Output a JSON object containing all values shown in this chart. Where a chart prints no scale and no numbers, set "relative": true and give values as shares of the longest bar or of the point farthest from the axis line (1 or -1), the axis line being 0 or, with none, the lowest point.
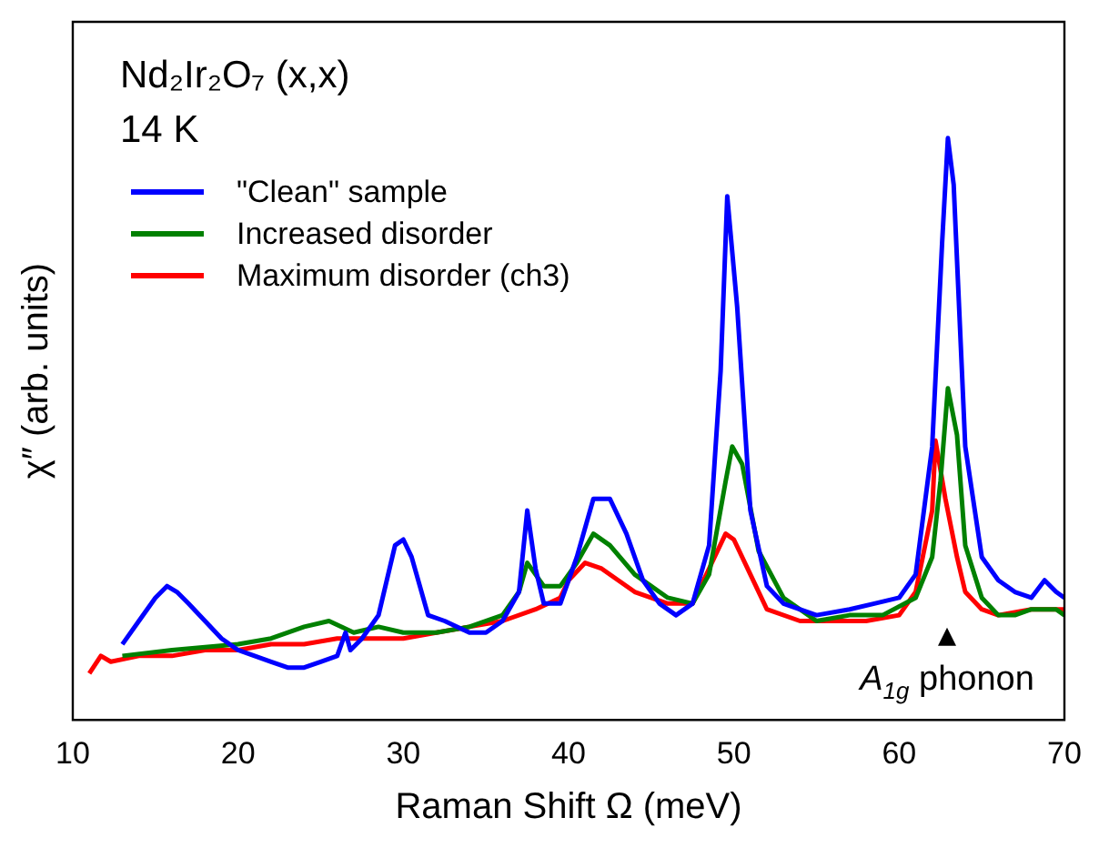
{
  "chart_data": {
    "type": "line",
    "relative": true,
    "title": "Nd₂Ir₂O₇ (x,x)",
    "subtitle": "14 K",
    "xlabel": "Raman Shift Ω (meV)",
    "ylabel": "χ″ (arb. units)",
    "xlim": [
      10,
      70
    ],
    "xticks": [
      10,
      20,
      30,
      40,
      50,
      60,
      70
    ],
    "grid": false,
    "legend": "top left",
    "marker": "none",
    "line_style": "solid",
    "annotations": [
      {
        "text": "A$_{1g}$ phonon",
        "x": 62.9,
        "y": 0.14
      }
    ],
    "series": [
      {
        "name": "\"Clean\" sample",
        "color": "#0000ff",
        "x": [
          13,
          14,
          15,
          15.7,
          16.3,
          17,
          18,
          19,
          20,
          21,
          22,
          23,
          24,
          25,
          26,
          26.5,
          26.8,
          27.5,
          28.5,
          29.5,
          30,
          30.5,
          31.5,
          32.5,
          34,
          35,
          36,
          37,
          37.5,
          38,
          38.5,
          39.5,
          40.5,
          41.5,
          42.5,
          43.5,
          44.5,
          45.5,
          46.5,
          47.5,
          48.5,
          49.2,
          49.6,
          50.2,
          51,
          52,
          53,
          55,
          57,
          58.5,
          60,
          61,
          62,
          62.6,
          62.95,
          63.3,
          64,
          65,
          66,
          67,
          68,
          68.8,
          69.5,
          70
        ],
        "values": [
          0.13,
          0.17,
          0.21,
          0.23,
          0.22,
          0.2,
          0.17,
          0.14,
          0.12,
          0.11,
          0.1,
          0.09,
          0.09,
          0.1,
          0.11,
          0.15,
          0.12,
          0.14,
          0.18,
          0.3,
          0.31,
          0.28,
          0.18,
          0.17,
          0.15,
          0.15,
          0.17,
          0.22,
          0.36,
          0.26,
          0.2,
          0.2,
          0.28,
          0.38,
          0.38,
          0.32,
          0.24,
          0.2,
          0.18,
          0.2,
          0.3,
          0.6,
          0.9,
          0.71,
          0.36,
          0.23,
          0.2,
          0.18,
          0.19,
          0.2,
          0.21,
          0.25,
          0.47,
          0.82,
          1,
          0.92,
          0.47,
          0.28,
          0.24,
          0.22,
          0.21,
          0.24,
          0.22,
          0.21
        ]
      },
      {
        "name": "Increased disorder",
        "color": "#008000",
        "x": [
          13,
          16,
          20,
          22,
          24,
          25.5,
          27,
          28.5,
          30,
          32,
          34,
          36,
          37,
          37.5,
          38.5,
          39.5,
          40.5,
          41.5,
          42.5,
          44,
          46,
          47.5,
          48.5,
          49.5,
          49.9,
          50.5,
          51.5,
          53,
          55,
          57,
          59,
          61,
          62,
          62.5,
          62.95,
          63.5,
          64,
          65,
          66,
          67,
          68,
          69.5,
          70
        ],
        "values": [
          0.11,
          0.12,
          0.13,
          0.14,
          0.16,
          0.17,
          0.15,
          0.16,
          0.15,
          0.15,
          0.16,
          0.18,
          0.22,
          0.27,
          0.23,
          0.23,
          0.27,
          0.32,
          0.3,
          0.25,
          0.21,
          0.2,
          0.25,
          0.41,
          0.47,
          0.44,
          0.29,
          0.21,
          0.17,
          0.18,
          0.18,
          0.21,
          0.28,
          0.41,
          0.57,
          0.49,
          0.3,
          0.21,
          0.18,
          0.18,
          0.19,
          0.19,
          0.18
        ]
      },
      {
        "name": "Maximum disorder (ch3)",
        "color": "#ff0000",
        "x": [
          11,
          11.7,
          12.3,
          14,
          16,
          18,
          20,
          22,
          24,
          26,
          28,
          30,
          32,
          34,
          36,
          38,
          39.5,
          40,
          41,
          42,
          43,
          44,
          46,
          47.5,
          48.5,
          49.5,
          50,
          51,
          52,
          54,
          56,
          58,
          60,
          61,
          62,
          62.2,
          62.8,
          63.5,
          64,
          65,
          66,
          68,
          70
        ],
        "values": [
          0.08,
          0.11,
          0.1,
          0.11,
          0.11,
          0.12,
          0.12,
          0.13,
          0.13,
          0.14,
          0.14,
          0.14,
          0.15,
          0.16,
          0.17,
          0.19,
          0.21,
          0.24,
          0.27,
          0.26,
          0.24,
          0.22,
          0.2,
          0.2,
          0.26,
          0.32,
          0.31,
          0.25,
          0.19,
          0.17,
          0.17,
          0.17,
          0.18,
          0.22,
          0.36,
          0.48,
          0.38,
          0.28,
          0.22,
          0.19,
          0.18,
          0.19,
          0.19
        ]
      }
    ]
  }
}
